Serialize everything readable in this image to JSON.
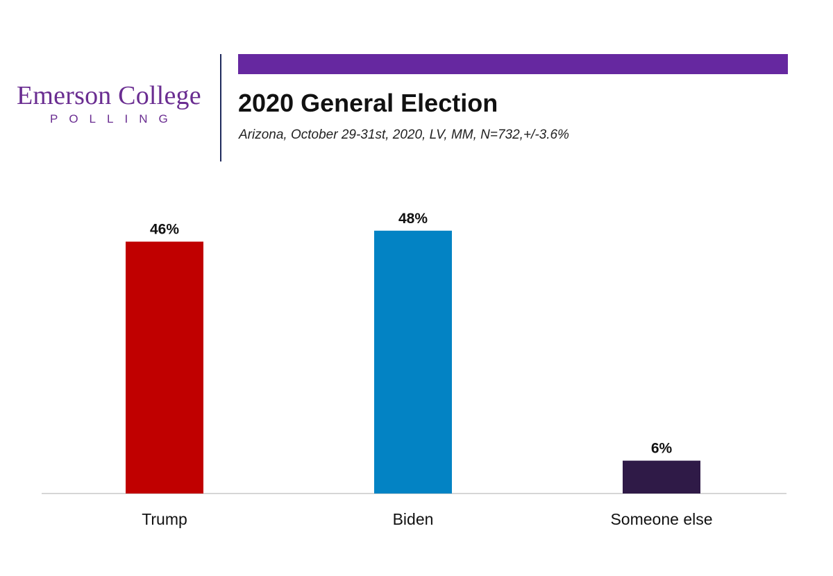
{
  "logo": {
    "name": "Emerson College",
    "sub": "POLLING"
  },
  "header": {
    "title": "2020 General Election",
    "subtitle": "Arizona, October 29-31st, 2020, LV, MM,  N=732,+/-3.6%"
  },
  "colors": {
    "accent": "#6a2d91",
    "band": "#6628a0",
    "divider": "#1f2a5c",
    "axis": "#d6d6d6"
  },
  "chart_data": {
    "type": "bar",
    "categories": [
      "Trump",
      "Biden",
      "Someone else"
    ],
    "values": [
      46,
      48,
      6
    ],
    "labels": [
      "46%",
      "48%",
      "6%"
    ],
    "colors": [
      "#c00000",
      "#0383c4",
      "#2f1a47"
    ],
    "ylim": [
      0,
      50
    ],
    "grid": false,
    "legend": "none"
  }
}
